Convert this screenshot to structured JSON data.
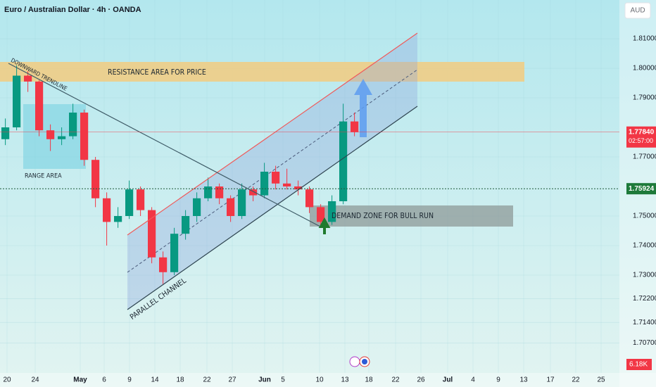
{
  "chart_data": {
    "type": "candlestick",
    "title": "Euro / Australian Dollar · 4h · OANDA",
    "currency": "AUD",
    "up_color": "#089981",
    "down_color": "#f23645",
    "x": [
      0,
      8,
      16,
      24,
      32,
      40,
      48,
      56,
      64,
      72,
      80,
      88,
      96,
      104,
      112,
      120,
      128,
      136,
      144,
      152,
      160,
      168,
      176,
      184,
      192,
      200,
      208,
      216,
      224,
      232,
      240,
      248
    ],
    "open": [
      1.776,
      1.78,
      1.7975,
      1.7955,
      1.779,
      1.776,
      1.777,
      1.785,
      1.769,
      1.756,
      1.748,
      1.75,
      1.759,
      1.752,
      1.736,
      1.731,
      1.744,
      1.75,
      1.756,
      1.76,
      1.756,
      1.75,
      1.759,
      1.757,
      1.765,
      1.761,
      1.76,
      1.759,
      1.753,
      1.748,
      1.755,
      1.782
    ],
    "high": [
      1.783,
      1.801,
      1.799,
      1.796,
      1.781,
      1.78,
      1.788,
      1.786,
      1.77,
      1.758,
      1.753,
      1.762,
      1.76,
      1.753,
      1.738,
      1.746,
      1.752,
      1.758,
      1.763,
      1.761,
      1.757,
      1.761,
      1.76,
      1.768,
      1.767,
      1.766,
      1.762,
      1.76,
      1.754,
      1.757,
      1.788,
      1.785
    ],
    "low": [
      1.774,
      1.779,
      1.792,
      1.777,
      1.772,
      1.774,
      1.776,
      1.767,
      1.753,
      1.74,
      1.746,
      1.749,
      1.75,
      1.734,
      1.727,
      1.73,
      1.742,
      1.748,
      1.755,
      1.754,
      1.748,
      1.749,
      1.755,
      1.756,
      1.759,
      1.759,
      1.757,
      1.751,
      1.746,
      1.747,
      1.754,
      1.777
    ],
    "close": [
      1.78,
      1.7975,
      1.7955,
      1.779,
      1.776,
      1.777,
      1.785,
      1.769,
      1.756,
      1.748,
      1.75,
      1.759,
      1.752,
      1.736,
      1.731,
      1.744,
      1.75,
      1.756,
      1.76,
      1.756,
      1.75,
      1.759,
      1.757,
      1.765,
      1.761,
      1.76,
      1.759,
      1.753,
      1.748,
      1.755,
      1.782,
      1.7784
    ],
    "xlim": [
      0,
      440
    ],
    "xticks": [
      {
        "value": 5,
        "label": "20"
      },
      {
        "value": 25,
        "label": "24"
      },
      {
        "value": 57,
        "label": "May"
      },
      {
        "value": 74,
        "label": "6"
      },
      {
        "value": 92,
        "label": "9"
      },
      {
        "value": 110,
        "label": "14"
      },
      {
        "value": 128,
        "label": "18"
      },
      {
        "value": 147,
        "label": "22"
      },
      {
        "value": 165,
        "label": "27"
      },
      {
        "value": 188,
        "label": "Jun"
      },
      {
        "value": 201,
        "label": "5"
      },
      {
        "value": 227,
        "label": "10"
      },
      {
        "value": 245,
        "label": "13"
      },
      {
        "value": 262,
        "label": "18"
      },
      {
        "value": 281,
        "label": "22"
      },
      {
        "value": 299,
        "label": "26"
      },
      {
        "value": 318,
        "label": "Jul"
      },
      {
        "value": 336,
        "label": "4"
      },
      {
        "value": 354,
        "label": "9"
      },
      {
        "value": 372,
        "label": "13"
      },
      {
        "value": 391,
        "label": "17"
      },
      {
        "value": 409,
        "label": "22"
      },
      {
        "value": 427,
        "label": "25"
      }
    ],
    "ylim": [
      1.6969,
      1.8231
    ],
    "yticks": [
      {
        "value": 1.81,
        "label": "1.81000"
      },
      {
        "value": 1.8,
        "label": "1.80000"
      },
      {
        "value": 1.79,
        "label": "1.79000"
      },
      {
        "value": 1.77,
        "label": "1.77000"
      },
      {
        "value": 1.75,
        "label": "1.75000"
      },
      {
        "value": 1.74,
        "label": "1.74000"
      },
      {
        "value": 1.73,
        "label": "1.73000"
      },
      {
        "value": 1.722,
        "label": "1.72200"
      },
      {
        "value": 1.714,
        "label": "1.71400"
      },
      {
        "value": 1.707,
        "label": "1.70700"
      }
    ],
    "last_price": {
      "value": 1.7784,
      "label": "1.77840",
      "countdown": "02:57:00"
    },
    "marked_price": {
      "value": 1.75924,
      "label": "1.75924"
    },
    "volume_label": "6.18K",
    "annotations": {
      "resistance": "RESISTANCE AREA FOR PRICE",
      "trendline": "DOWNWARD TRENDLINE",
      "range": "RANGE AREA",
      "channel": "PARALLEL CHANNEL",
      "demand": "DEMAND ZONE FOR BULL RUN"
    }
  }
}
